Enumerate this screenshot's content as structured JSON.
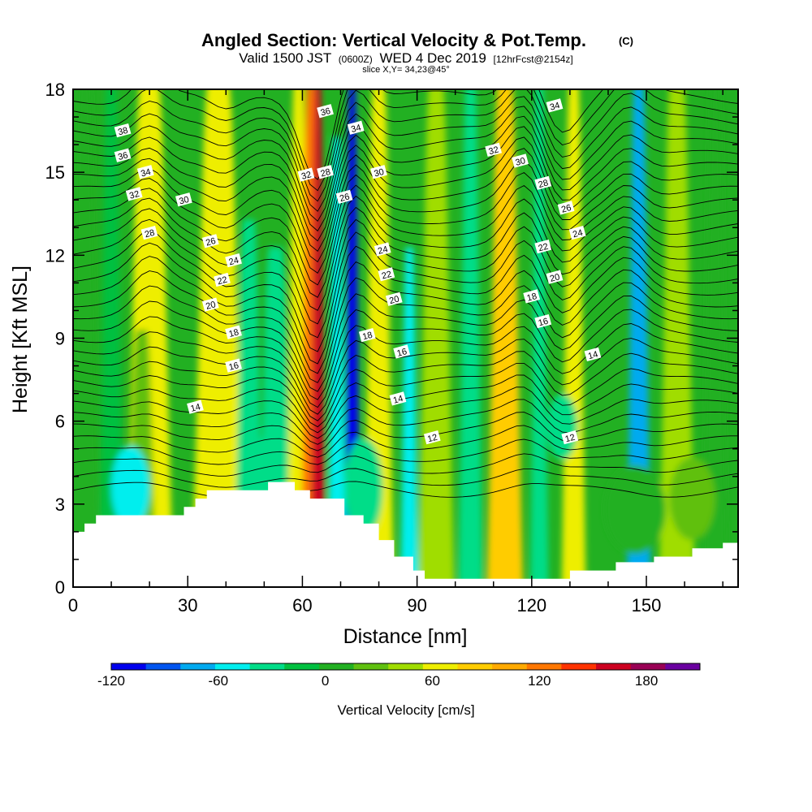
{
  "chart_data": {
    "type": "heatmap",
    "title": "Angled Section: Vertical Velocity & Pot.Temp.",
    "title_suffix": "(C)",
    "subtitle_parts": [
      "Valid 1500 JST",
      "(0600Z)",
      "WED 4 Dec 2019",
      "[12hrFcst@2154z]"
    ],
    "subtitle2": "slice X,Y= 34,23@45°",
    "xlabel": "Distance [nm]",
    "ylabel": "Height [Kft MSL]",
    "xlim": [
      0,
      174
    ],
    "ylim": [
      0,
      18
    ],
    "xticks": [
      0,
      30,
      60,
      90,
      120,
      150
    ],
    "yticks": [
      0,
      3,
      6,
      9,
      12,
      15,
      18
    ],
    "colorbar": {
      "label": "Vertical Velocity [cm/s]",
      "min": -120,
      "max": 210,
      "step": 20,
      "tick_values": [
        -120,
        -60,
        0,
        60,
        120,
        180
      ],
      "colors": [
        "#0000ee",
        "#0055f0",
        "#00aaf0",
        "#00eeee",
        "#00dd88",
        "#00c040",
        "#22b022",
        "#60c010",
        "#a0dd00",
        "#eeee00",
        "#ffcc00",
        "#ffaa00",
        "#ff7700",
        "#ff3300",
        "#cc0020",
        "#990055",
        "#6a00a0"
      ]
    },
    "vertical_velocity_columns": [
      {
        "x": 3,
        "w": 5,
        "v": 0,
        "ytop": 18
      },
      {
        "x": 10,
        "w": 4,
        "v": -20,
        "ytop": 18
      },
      {
        "x": 20,
        "w": 8,
        "v": 60,
        "ytop": 18
      },
      {
        "x": 18,
        "w": 5,
        "v": 30,
        "ytop": 9
      },
      {
        "x": 38,
        "w": 9,
        "v": 60,
        "ytop": 18
      },
      {
        "x": 46,
        "w": 5,
        "v": -30,
        "ytop": 13
      },
      {
        "x": 53,
        "w": 6,
        "v": -40,
        "ytop": 12
      },
      {
        "x": 59,
        "w": 4,
        "v": 60,
        "ytop": 18
      },
      {
        "x": 62,
        "w": 3,
        "v": 120,
        "ytop": 18
      },
      {
        "x": 64,
        "w": 2.5,
        "v": 170,
        "ytop": 18
      },
      {
        "x": 69,
        "w": 3,
        "v": -60,
        "ytop": 16
      },
      {
        "x": 73,
        "w": 2.5,
        "v": -110,
        "ytop": 18
      },
      {
        "x": 80,
        "w": 5,
        "v": 60,
        "ytop": 18
      },
      {
        "x": 88,
        "w": 3,
        "v": -60,
        "ytop": 12
      },
      {
        "x": 95,
        "w": 6,
        "v": 40,
        "ytop": 18
      },
      {
        "x": 104,
        "w": 4,
        "v": -40,
        "ytop": 18
      },
      {
        "x": 113,
        "w": 6,
        "v": 80,
        "ytop": 18
      },
      {
        "x": 122,
        "w": 3,
        "v": -40,
        "ytop": 18
      },
      {
        "x": 131,
        "w": 4,
        "v": 70,
        "ytop": 18
      },
      {
        "x": 148,
        "w": 4,
        "v": -70,
        "ytop": 18
      },
      {
        "x": 158,
        "w": 6,
        "v": 40,
        "ytop": 18
      },
      {
        "x": 168,
        "w": 4,
        "v": 10,
        "ytop": 18
      }
    ],
    "vertical_velocity_blobs": [
      {
        "x": 15,
        "y": 3.6,
        "rx": 5,
        "ry": 1.5,
        "v": -60
      },
      {
        "x": 49,
        "y": 3.9,
        "rx": 5,
        "ry": 1.5,
        "v": -40
      },
      {
        "x": 76,
        "y": 3.6,
        "rx": 5,
        "ry": 1.8,
        "v": -40
      },
      {
        "x": 128,
        "y": 5.8,
        "rx": 4,
        "ry": 1.2,
        "v": -40
      },
      {
        "x": 147,
        "y": 2.8,
        "rx": 8,
        "ry": 1.6,
        "v": 0
      },
      {
        "x": 162,
        "y": 3.2,
        "rx": 6,
        "ry": 1.5,
        "v": 20
      }
    ],
    "terrain": [
      [
        0,
        2.0
      ],
      [
        3,
        2.0
      ],
      [
        3,
        2.3
      ],
      [
        6,
        2.3
      ],
      [
        6,
        2.6
      ],
      [
        29,
        2.6
      ],
      [
        29,
        2.9
      ],
      [
        32,
        2.9
      ],
      [
        32,
        3.2
      ],
      [
        35,
        3.2
      ],
      [
        35,
        3.5
      ],
      [
        51,
        3.5
      ],
      [
        51,
        3.8
      ],
      [
        58,
        3.8
      ],
      [
        58,
        3.5
      ],
      [
        62,
        3.5
      ],
      [
        62,
        3.2
      ],
      [
        71,
        3.2
      ],
      [
        71,
        2.6
      ],
      [
        76,
        2.6
      ],
      [
        76,
        2.3
      ],
      [
        80,
        2.3
      ],
      [
        80,
        1.7
      ],
      [
        84,
        1.7
      ],
      [
        84,
        1.1
      ],
      [
        89,
        1.1
      ],
      [
        89,
        0.6
      ],
      [
        92,
        0.6
      ],
      [
        92,
        0.3
      ],
      [
        130,
        0.3
      ],
      [
        130,
        0.6
      ],
      [
        142,
        0.6
      ],
      [
        142,
        0.9
      ],
      [
        152,
        0.9
      ],
      [
        152,
        1.1
      ],
      [
        162,
        1.1
      ],
      [
        162,
        1.4
      ],
      [
        170,
        1.4
      ],
      [
        170,
        1.6
      ],
      [
        174,
        1.6
      ]
    ],
    "potential_temperature_labels": [
      {
        "text": "38",
        "x": 13,
        "y": 16.5
      },
      {
        "text": "36",
        "x": 13,
        "y": 15.6
      },
      {
        "text": "34",
        "x": 19,
        "y": 15.0
      },
      {
        "text": "32",
        "x": 16,
        "y": 14.2
      },
      {
        "text": "30",
        "x": 29,
        "y": 14.0
      },
      {
        "text": "28",
        "x": 20,
        "y": 12.8
      },
      {
        "text": "26",
        "x": 36,
        "y": 12.5
      },
      {
        "text": "24",
        "x": 42,
        "y": 11.8
      },
      {
        "text": "22",
        "x": 39,
        "y": 11.1
      },
      {
        "text": "20",
        "x": 36,
        "y": 10.2
      },
      {
        "text": "18",
        "x": 42,
        "y": 9.2
      },
      {
        "text": "16",
        "x": 42,
        "y": 8.0
      },
      {
        "text": "14",
        "x": 32,
        "y": 6.5
      },
      {
        "text": "36",
        "x": 66,
        "y": 17.2
      },
      {
        "text": "34",
        "x": 74,
        "y": 16.6
      },
      {
        "text": "32",
        "x": 61,
        "y": 14.9
      },
      {
        "text": "28",
        "x": 66,
        "y": 15.0
      },
      {
        "text": "26",
        "x": 71,
        "y": 14.1
      },
      {
        "text": "30",
        "x": 80,
        "y": 15.0
      },
      {
        "text": "24",
        "x": 81,
        "y": 12.2
      },
      {
        "text": "22",
        "x": 82,
        "y": 11.3
      },
      {
        "text": "20",
        "x": 84,
        "y": 10.4
      },
      {
        "text": "18",
        "x": 77,
        "y": 9.1
      },
      {
        "text": "16",
        "x": 86,
        "y": 8.5
      },
      {
        "text": "14",
        "x": 85,
        "y": 6.8
      },
      {
        "text": "12",
        "x": 94,
        "y": 5.4
      },
      {
        "text": "34",
        "x": 126,
        "y": 17.4
      },
      {
        "text": "32",
        "x": 110,
        "y": 15.8
      },
      {
        "text": "30",
        "x": 117,
        "y": 15.4
      },
      {
        "text": "28",
        "x": 123,
        "y": 14.6
      },
      {
        "text": "26",
        "x": 129,
        "y": 13.7
      },
      {
        "text": "24",
        "x": 132,
        "y": 12.8
      },
      {
        "text": "22",
        "x": 123,
        "y": 12.3
      },
      {
        "text": "20",
        "x": 126,
        "y": 11.2
      },
      {
        "text": "18",
        "x": 120,
        "y": 10.5
      },
      {
        "text": "16",
        "x": 123,
        "y": 9.6
      },
      {
        "text": "14",
        "x": 136,
        "y": 8.4
      },
      {
        "text": "12",
        "x": 130,
        "y": 5.4
      }
    ]
  }
}
